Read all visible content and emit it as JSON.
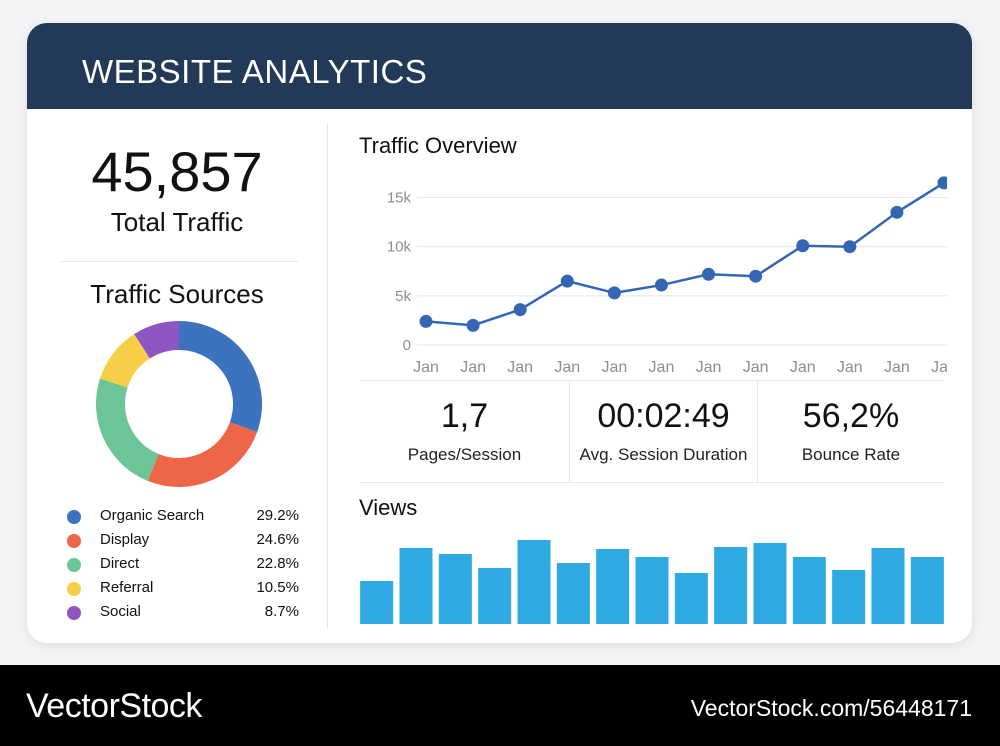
{
  "header": {
    "title": "WEBSITE ANALYTICS"
  },
  "total": {
    "value": "45,857",
    "label": "Total Traffic"
  },
  "sources": {
    "title": "Traffic Sources",
    "items": [
      {
        "label": "Organic Search",
        "value": "29.2%",
        "color": "#3b73bf"
      },
      {
        "label": "Display",
        "value": "24.6%",
        "color": "#ef6547"
      },
      {
        "label": "Direct",
        "value": "22.8%",
        "color": "#6cc497"
      },
      {
        "label": "Referral",
        "value": "10.5%",
        "color": "#f6cf47"
      },
      {
        "label": "Social",
        "value": "8.7%",
        "color": "#8e56c3"
      }
    ]
  },
  "overview": {
    "title": "Traffic Overview"
  },
  "chart_data": [
    {
      "type": "line",
      "title": "Traffic Overview",
      "categories": [
        "Jan",
        "Jan",
        "Jan",
        "Jan",
        "Jan",
        "Jan",
        "Jan",
        "Jan",
        "Jan",
        "Jan",
        "Jan",
        "Jan"
      ],
      "values": [
        2400,
        2000,
        3600,
        6500,
        5300,
        6100,
        7200,
        7000,
        10100,
        10000,
        13500,
        16500
      ],
      "yticks": [
        "0",
        "5k",
        "10k",
        "15k"
      ],
      "ylim": [
        0,
        17500
      ],
      "color": "#3566b3",
      "grid": true
    },
    {
      "type": "pie",
      "title": "Traffic Sources",
      "categories": [
        "Organic Search",
        "Display",
        "Direct",
        "Referral",
        "Social"
      ],
      "values": [
        29.2,
        24.6,
        22.8,
        10.5,
        8.7
      ]
    },
    {
      "type": "bar",
      "title": "Views",
      "values": [
        43,
        76,
        70,
        56,
        84,
        61,
        75,
        67,
        51,
        77,
        81,
        67,
        54,
        76,
        67
      ],
      "ylim": [
        0,
        90
      ],
      "color": "#2ea9e1"
    }
  ],
  "kpis": [
    {
      "value": "1,7",
      "label": "Pages/Session"
    },
    {
      "value": "00:02:49",
      "label": "Avg. Session Duration"
    },
    {
      "value": "56,2%",
      "label": "Bounce Rate"
    }
  ],
  "views": {
    "title": "Views"
  },
  "footer": {
    "logo": "VectorStock",
    "image_id": "VectorStock.com/56448171"
  }
}
